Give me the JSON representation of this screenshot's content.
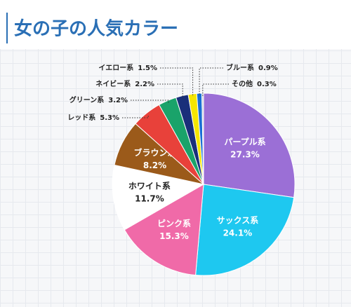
{
  "chart_data": {
    "type": "pie",
    "title": "女の子の人気カラー",
    "categories": [
      "パープル系",
      "サックス系",
      "ピンク系",
      "ホワイト系",
      "ブラウン系",
      "レッド系",
      "グリーン系",
      "ネイビー系",
      "イエロー系",
      "ブルー系",
      "その他"
    ],
    "values": [
      27.3,
      24.1,
      15.3,
      11.7,
      8.2,
      5.3,
      3.2,
      2.2,
      1.5,
      0.9,
      0.3
    ],
    "value_labels": [
      "27.3%",
      "24.1%",
      "15.3%",
      "11.7%",
      "8.2%",
      "5.3%",
      "3.2%",
      "2.2%",
      "1.5%",
      "0.9%",
      "0.3%"
    ],
    "colors": [
      "#9b6fd6",
      "#1ec8f0",
      "#f06aa8",
      "#ffffff",
      "#9b5a1a",
      "#e8413a",
      "#1aa36a",
      "#1a2f7a",
      "#f5e600",
      "#1a6fd4",
      "#c8d0d8"
    ]
  }
}
